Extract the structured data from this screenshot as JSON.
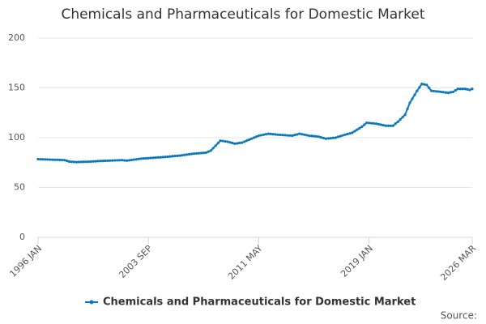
{
  "chart_data": {
    "type": "line",
    "title": "Chemicals and Pharmaceuticals for Domestic Market",
    "source": "Source:",
    "x": [
      "1996 JAN",
      "1996 MAR",
      "1996 MAY",
      "1996 JUL",
      "1996 SEP",
      "1996 NOV",
      "1997 JAN",
      "1997 MAR",
      "1997 MAY",
      "1997 JUL",
      "1997 SEP",
      "1997 NOV",
      "1998 JAN",
      "1998 MAR",
      "1998 MAY",
      "1998 JUL",
      "1998 SEP",
      "1998 NOV",
      "1999 JAN",
      "1999 MAR",
      "1999 MAY",
      "1999 JUL",
      "1999 SEP",
      "1999 NOV",
      "2000 JAN",
      "2000 MAR",
      "2000 MAY",
      "2000 JUL",
      "2000 SEP",
      "2000 NOV",
      "2001 JAN",
      "2001 MAR",
      "2001 MAY",
      "2001 JUL",
      "2001 SEP",
      "2001 NOV",
      "2002 JAN",
      "2002 MAR",
      "2002 MAY",
      "2002 JUL",
      "2002 SEP",
      "2002 NOV",
      "2003 JAN",
      "2003 MAR",
      "2003 MAY",
      "2003 JUL",
      "2003 SEP",
      "2003 NOV",
      "2004 JAN",
      "2004 MAR",
      "2004 MAY",
      "2004 JUL",
      "2004 SEP",
      "2004 NOV",
      "2005 JAN",
      "2005 MAR",
      "2005 MAY",
      "2005 JUL",
      "2005 SEP",
      "2005 NOV",
      "2006 JAN",
      "2006 MAR",
      "2006 MAY",
      "2006 JUL",
      "2006 SEP",
      "2006 NOV",
      "2007 JAN",
      "2007 MAR",
      "2007 MAY",
      "2007 JUL",
      "2007 SEP",
      "2007 NOV",
      "2008 JAN",
      "2008 MAR",
      "2008 MAY",
      "2008 JUL",
      "2008 SEP",
      "2008 NOV",
      "2009 JAN",
      "2009 MAR",
      "2009 MAY",
      "2009 JUL",
      "2009 SEP",
      "2009 NOV",
      "2010 JAN",
      "2010 MAR",
      "2010 MAY",
      "2010 JUL",
      "2010 SEP",
      "2010 NOV",
      "2011 JAN",
      "2011 MAR",
      "2011 MAY",
      "2011 JUL",
      "2011 SEP",
      "2011 NOV",
      "2012 JAN",
      "2012 MAR",
      "2012 MAY",
      "2012 JUL",
      "2012 SEP",
      "2012 NOV",
      "2013 JAN",
      "2013 MAR",
      "2013 MAY",
      "2013 JUL",
      "2013 SEP",
      "2013 NOV",
      "2014 JAN",
      "2014 MAR",
      "2014 MAY",
      "2014 JUL",
      "2014 SEP",
      "2014 NOV",
      "2015 JAN",
      "2015 MAR",
      "2015 MAY",
      "2015 JUL",
      "2015 SEP",
      "2015 NOV",
      "2016 JAN",
      "2016 MAR",
      "2016 MAY",
      "2016 JUL",
      "2016 SEP",
      "2016 NOV",
      "2017 JAN",
      "2017 MAR",
      "2017 MAY",
      "2017 JUL",
      "2017 SEP",
      "2017 NOV",
      "2018 JAN",
      "2018 MAR",
      "2018 MAY",
      "2018 JUL",
      "2018 SEP",
      "2018 NOV",
      "2019 JAN",
      "2019 MAR",
      "2019 MAY",
      "2019 JUL",
      "2019 SEP",
      "2019 NOV",
      "2020 JAN",
      "2020 MAR",
      "2020 MAY",
      "2020 JUL",
      "2020 SEP",
      "2020 NOV",
      "2021 JAN",
      "2021 MAR",
      "2021 MAY",
      "2021 JUL",
      "2021 SEP",
      "2021 NOV",
      "2022 JAN",
      "2022 MAR",
      "2022 MAY",
      "2022 JUL",
      "2022 SEP",
      "2022 NOV",
      "2023 JAN",
      "2023 MAR",
      "2023 MAY",
      "2023 JUL",
      "2023 SEP",
      "2023 NOV",
      "2024 JAN",
      "2024 MAR",
      "2024 MAY",
      "2024 JUL",
      "2024 SEP",
      "2024 NOV",
      "2025 JAN",
      "2025 MAR",
      "2025 MAY",
      "2025 JUL",
      "2025 SEP",
      "2025 NOV",
      "2026 JAN",
      "2026 MAR"
    ],
    "xticks": [
      "1996 JAN",
      "2003 SEP",
      "2011 MAY",
      "2019 JAN",
      "2026 MAR"
    ],
    "series": [
      {
        "name": "Chemicals and Pharmaceuticals for Domestic Market",
        "color": "#0b77bd",
        "values": [
          78.5,
          78.4,
          78.3,
          78.2,
          78.1,
          78,
          77.9,
          77.8,
          77.8,
          77.7,
          77.6,
          77.5,
          76.8,
          76,
          75.8,
          75.7,
          75.5,
          75.6,
          75.7,
          75.8,
          75.8,
          75.9,
          76,
          76.2,
          76.3,
          76.5,
          76.6,
          76.7,
          76.8,
          76.9,
          77,
          77.1,
          77.2,
          77.3,
          77.4,
          77.5,
          77.2,
          77,
          77.3,
          77.7,
          78,
          78.3,
          78.7,
          79,
          79.2,
          79.3,
          79.5,
          79.7,
          79.8,
          80,
          80.2,
          80.3,
          80.5,
          80.7,
          80.9,
          81.1,
          81.4,
          81.6,
          81.8,
          82,
          82.3,
          82.7,
          83,
          83.3,
          83.7,
          84,
          84.2,
          84.4,
          84.6,
          84.8,
          85,
          86,
          87,
          89.5,
          92,
          94.5,
          97,
          96.7,
          96.3,
          96,
          95.3,
          94.7,
          94,
          94.3,
          94.7,
          95,
          96,
          97,
          98,
          99,
          100,
          101,
          102,
          102.5,
          103,
          103.5,
          104,
          103.8,
          103.5,
          103.3,
          103,
          102.8,
          102.7,
          102.5,
          102.3,
          102.2,
          102,
          102.7,
          103.3,
          104,
          103.5,
          103,
          102.5,
          102,
          101.8,
          101.5,
          101.3,
          101,
          100.3,
          99.7,
          99,
          99.3,
          99.5,
          99.8,
          100,
          100.8,
          101.5,
          102.3,
          103,
          103.7,
          104.3,
          105,
          106.5,
          108,
          109.5,
          111,
          113,
          115,
          114.8,
          114.5,
          114.3,
          114,
          113.5,
          113,
          112.5,
          112,
          112,
          112,
          112,
          114,
          116,
          118.3,
          120.7,
          123,
          129,
          135,
          139,
          143,
          147,
          150.5,
          154,
          153.5,
          153,
          150,
          147,
          146.8,
          146.5,
          146.3,
          146,
          145.7,
          145.3,
          145,
          145.5,
          146,
          147.5,
          149,
          149,
          149,
          149,
          148.5,
          148,
          149
        ]
      }
    ],
    "ylim": [
      0,
      200
    ],
    "yticks": [
      0,
      50,
      100,
      150,
      200
    ],
    "grid": true,
    "legend": "bottom"
  }
}
